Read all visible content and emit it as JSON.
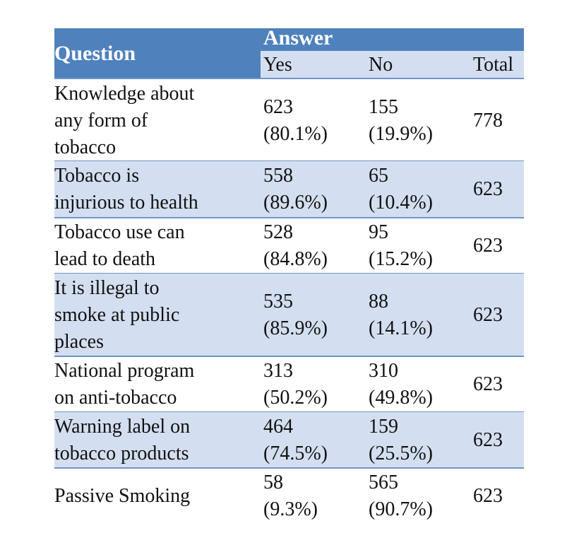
{
  "chart_data": {
    "type": "table",
    "header": {
      "question": "Question",
      "answer": "Answer",
      "yes": "Yes",
      "no": "No",
      "total": "Total"
    },
    "rows": [
      {
        "question": "Knowledge about\nany form of\ntobacco",
        "yes": "623\n(80.1%)",
        "no": "155\n(19.9%)",
        "total": "778"
      },
      {
        "question": "Tobacco is\ninjurious  to health",
        "yes": "558\n(89.6%)",
        "no": "65\n(10.4%)",
        "total": "623"
      },
      {
        "question": "Tobacco use can\nlead to death",
        "yes": "528\n(84.8%)",
        "no": "95\n(15.2%)",
        "total": "623"
      },
      {
        "question": "It is illegal to\nsmoke at public\nplaces",
        "yes": "535\n(85.9%)",
        "no": "88\n(14.1%)",
        "total": "623"
      },
      {
        "question": "National program\non anti-tobacco",
        "yes": "313\n(50.2%)",
        "no": "310\n(49.8%)",
        "total": "623"
      },
      {
        "question": "Warning label on\ntobacco products",
        "yes": "464\n(74.5%)",
        "no": "159\n(25.5%)",
        "total": "623"
      },
      {
        "question": "Passive Smoking",
        "yes": "58\n(9.3%)",
        "no": "565\n(90.7%)",
        "total": "623"
      }
    ],
    "colors": {
      "header_dark": "#4f81bd",
      "band_light": "#d3dff0",
      "rule": "#6f95c8"
    }
  }
}
